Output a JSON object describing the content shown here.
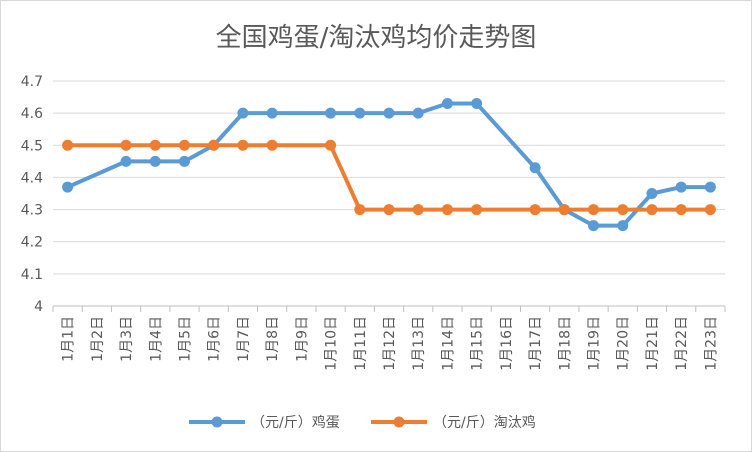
{
  "chart_data": {
    "type": "line",
    "title": "全国鸡蛋/淘汰鸡均价走势图",
    "xlabel": "",
    "ylabel": "",
    "categories": [
      "1月1日",
      "1月2日",
      "1月3日",
      "1月4日",
      "1月5日",
      "1月6日",
      "1月7日",
      "1月8日",
      "1月9日",
      "1月10日",
      "1月11日",
      "1月12日",
      "1月13日",
      "1月14日",
      "1月15日",
      "1月16日",
      "1月17日",
      "1月18日",
      "1月19日",
      "1月20日",
      "1月21日",
      "1月22日",
      "1月23日"
    ],
    "ylim": [
      4,
      4.7
    ],
    "yticks": [
      "4",
      "4.1",
      "4.2",
      "4.3",
      "4.4",
      "4.5",
      "4.6",
      "4.7"
    ],
    "grid": true,
    "legend_position": "bottom",
    "series": [
      {
        "name": "（元/斤）鸡蛋",
        "color": "#5b9bd5",
        "values": [
          4.37,
          null,
          4.45,
          4.45,
          4.45,
          4.5,
          4.6,
          4.6,
          null,
          4.6,
          4.6,
          4.6,
          4.6,
          4.63,
          4.63,
          null,
          4.43,
          4.3,
          4.25,
          4.25,
          4.35,
          4.37,
          4.37
        ]
      },
      {
        "name": "（元/斤）淘汰鸡",
        "color": "#ed7d31",
        "values": [
          4.5,
          null,
          4.5,
          4.5,
          4.5,
          4.5,
          4.5,
          4.5,
          null,
          4.5,
          4.3,
          4.3,
          4.3,
          4.3,
          4.3,
          null,
          4.3,
          4.3,
          4.3,
          4.3,
          4.3,
          4.3,
          4.3
        ]
      }
    ]
  }
}
